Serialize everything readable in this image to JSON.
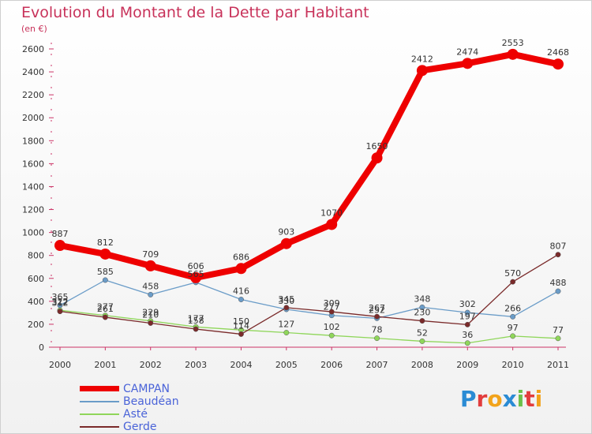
{
  "chart_data": {
    "type": "line",
    "title": "Evolution du Montant de la Dette par Habitant",
    "subtitle": "(en €)",
    "xlabel": "",
    "ylabel": "",
    "x": [
      "2000",
      "2001",
      "2002",
      "2003",
      "2004",
      "2005",
      "2006",
      "2007",
      "2008",
      "2009",
      "2010",
      "2011"
    ],
    "ylim": [
      0,
      2600
    ],
    "yticks": [
      0,
      200,
      400,
      600,
      800,
      1000,
      1200,
      1400,
      1600,
      1800,
      2000,
      2200,
      2400,
      2600
    ],
    "grid": false,
    "legend_position": "bottom-left",
    "series": [
      {
        "name": "CAMPAN",
        "color": "#ee0000",
        "values": [
          887,
          812,
          709,
          606,
          686,
          903,
          1070,
          1650,
          2412,
          2474,
          2553,
          2468
        ]
      },
      {
        "name": "Beaudéan",
        "color": "#6a9cc8",
        "values": [
          365,
          585,
          458,
          565,
          416,
          330,
          277,
          252,
          348,
          302,
          266,
          488
        ]
      },
      {
        "name": "Asté",
        "color": "#8fd65a",
        "values": [
          322,
          277,
          229,
          177,
          150,
          127,
          102,
          78,
          52,
          36,
          97,
          77
        ]
      },
      {
        "name": "Gerde",
        "color": "#7a2a2a",
        "values": [
          312,
          261,
          210,
          158,
          114,
          345,
          309,
          267,
          230,
          197,
          570,
          807
        ]
      }
    ]
  },
  "logo": {
    "letters": [
      "P",
      "r",
      "o",
      "x",
      "i",
      "t",
      "i"
    ]
  }
}
